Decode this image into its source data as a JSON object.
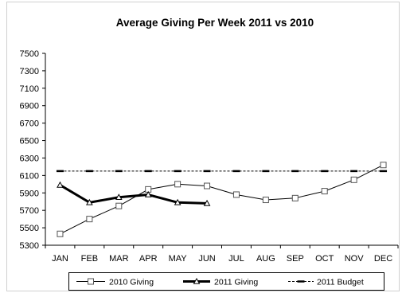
{
  "chart_data": {
    "type": "line",
    "title": "Average Giving Per Week 2011 vs 2010",
    "xlabel": "",
    "ylabel": "",
    "categories": [
      "JAN",
      "FEB",
      "MAR",
      "APR",
      "MAY",
      "JUN",
      "JUL",
      "AUG",
      "SEP",
      "OCT",
      "NOV",
      "DEC"
    ],
    "ylim": [
      5300,
      7500
    ],
    "yticks": [
      5300,
      5500,
      5700,
      5900,
      6100,
      6300,
      6500,
      6700,
      6900,
      7100,
      7300,
      7500
    ],
    "grid": false,
    "legend_position": "bottom",
    "series": [
      {
        "name": "2010 Giving",
        "style": "thin-line-square-markers",
        "color": "#000000",
        "values": [
          5430,
          5600,
          5750,
          5940,
          6000,
          5980,
          5880,
          5820,
          5840,
          5920,
          6050,
          6220
        ]
      },
      {
        "name": "2011 Giving",
        "style": "thick-line-triangle-markers",
        "color": "#000000",
        "values": [
          5990,
          5790,
          5850,
          5880,
          5790,
          5780,
          null,
          null,
          null,
          null,
          null,
          null
        ]
      },
      {
        "name": "2011 Budget",
        "style": "dashed-line-dash-markers",
        "color": "#000000",
        "values": [
          6150,
          6150,
          6150,
          6150,
          6150,
          6150,
          6150,
          6150,
          6150,
          6150,
          6150,
          6150
        ]
      }
    ]
  }
}
